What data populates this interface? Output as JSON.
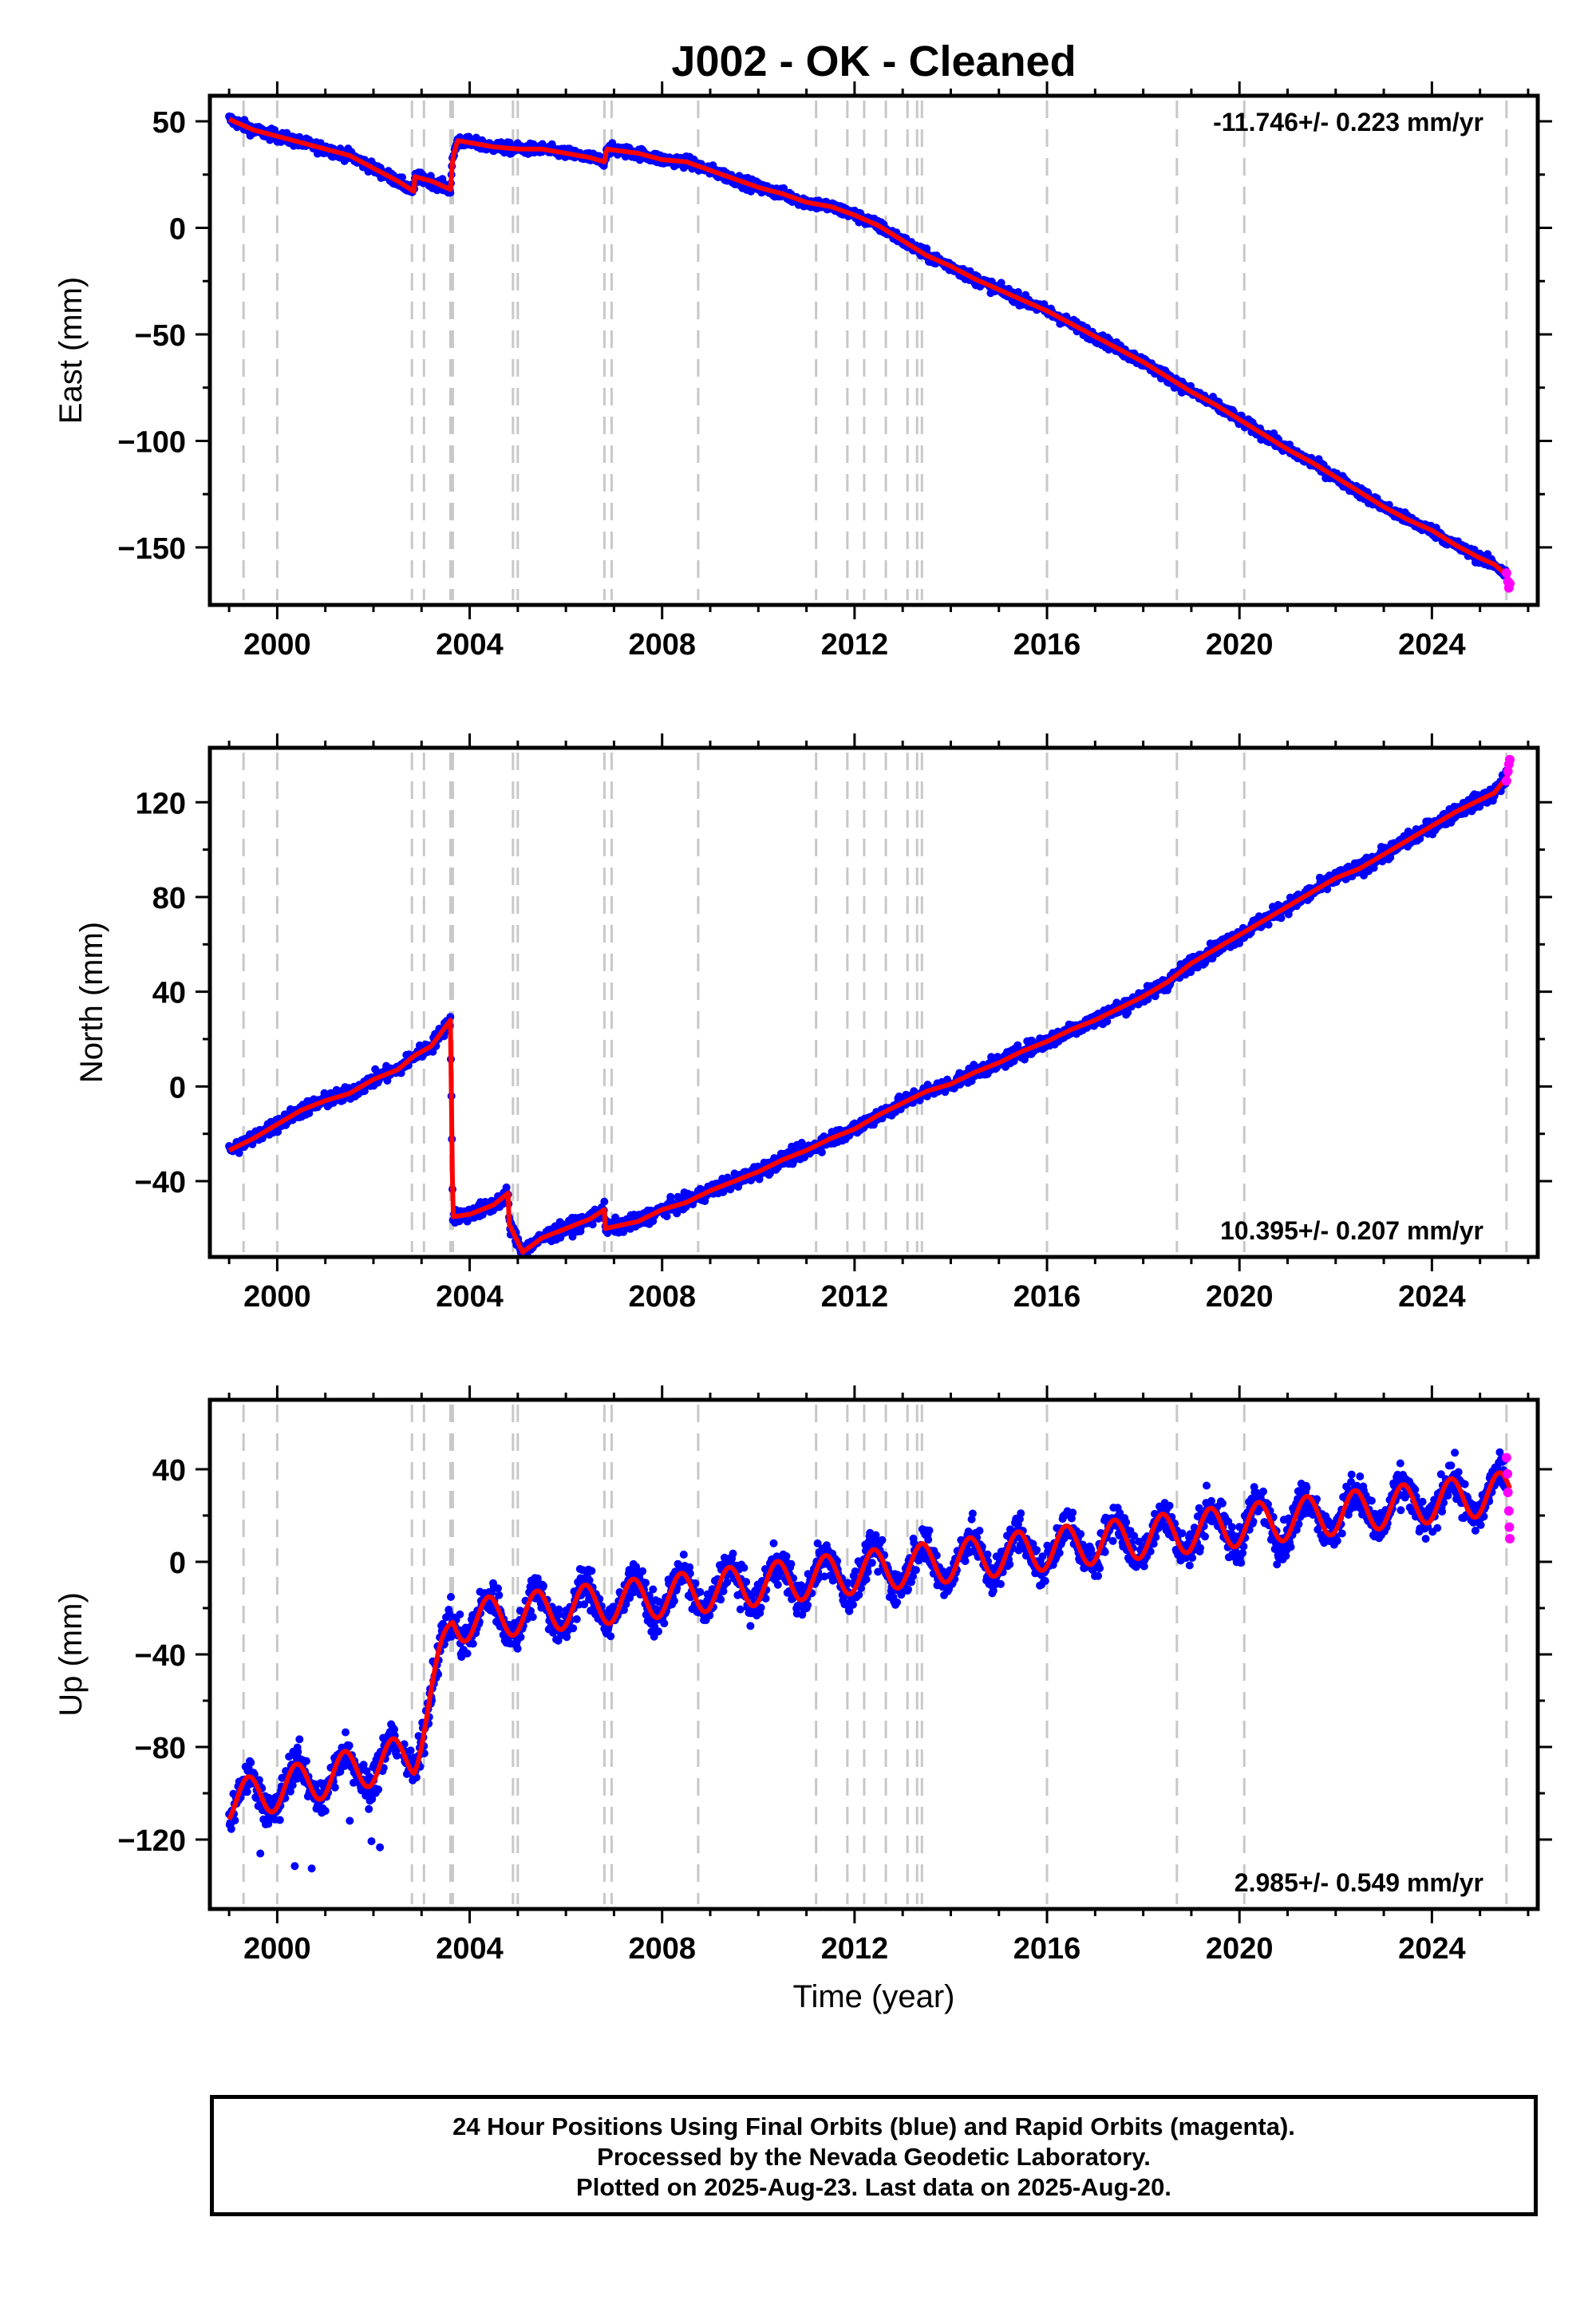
{
  "figure_title": "J002  - OK - Cleaned",
  "xlabel": "Time (year)",
  "colors": {
    "final_orbits": "#0000ff",
    "rapid_orbits": "#ff00ff",
    "model": "#ff0000",
    "event_lines": "#c8c8c8"
  },
  "chart_data": [
    {
      "type": "scatter",
      "component": "East",
      "ylabel": "East (mm)",
      "rate_label": "-11.746+/- 0.223 mm/yr",
      "rate_position": "top-right",
      "xlim": [
        1998.6,
        2026.2
      ],
      "ylim": [
        -177,
        62
      ],
      "xticks": [
        2000,
        2004,
        2008,
        2012,
        2016,
        2020,
        2024
      ],
      "yticks": [
        50,
        0,
        -50,
        -100,
        -150
      ],
      "ytick_labels": [
        "50",
        "0",
        "−50",
        "−100",
        "−150"
      ],
      "event_lines": [
        1999.3,
        2000.0,
        2002.8,
        2003.05,
        2003.6,
        2003.65,
        2004.9,
        2005.0,
        2006.8,
        2006.95,
        2008.75,
        2011.2,
        2011.85,
        2012.2,
        2012.65,
        2013.1,
        2013.3,
        2013.4,
        2016.0,
        2018.7,
        2020.1,
        2025.55
      ],
      "model_series": {
        "name": "model",
        "points": [
          [
            1999.0,
            51
          ],
          [
            1999.5,
            46
          ],
          [
            2000.0,
            43
          ],
          [
            2000.5,
            40
          ],
          [
            2001.0,
            37
          ],
          [
            2001.5,
            34
          ],
          [
            2002.0,
            28
          ],
          [
            2002.5,
            22
          ],
          [
            2002.85,
            17
          ],
          [
            2002.86,
            24
          ],
          [
            2003.2,
            22
          ],
          [
            2003.6,
            18
          ],
          [
            2003.65,
            33
          ],
          [
            2003.75,
            41
          ],
          [
            2004.0,
            40
          ],
          [
            2004.5,
            38
          ],
          [
            2005.0,
            37
          ],
          [
            2005.5,
            37
          ],
          [
            2006.0,
            35
          ],
          [
            2006.5,
            33
          ],
          [
            2006.8,
            31
          ],
          [
            2006.85,
            37
          ],
          [
            2007.5,
            35
          ],
          [
            2008.0,
            32
          ],
          [
            2008.5,
            31
          ],
          [
            2009.0,
            27
          ],
          [
            2009.5,
            23
          ],
          [
            2010.0,
            19
          ],
          [
            2010.5,
            16
          ],
          [
            2011.0,
            12
          ],
          [
            2011.5,
            10
          ],
          [
            2012.0,
            6
          ],
          [
            2012.5,
            1
          ],
          [
            2013.0,
            -6
          ],
          [
            2013.5,
            -13
          ],
          [
            2014.0,
            -18
          ],
          [
            2014.5,
            -24
          ],
          [
            2015.0,
            -29
          ],
          [
            2015.5,
            -34
          ],
          [
            2016.0,
            -39
          ],
          [
            2016.5,
            -45
          ],
          [
            2017.0,
            -51
          ],
          [
            2017.5,
            -57
          ],
          [
            2018.0,
            -63
          ],
          [
            2018.5,
            -70
          ],
          [
            2019.0,
            -77
          ],
          [
            2019.5,
            -83
          ],
          [
            2020.0,
            -90
          ],
          [
            2020.5,
            -97
          ],
          [
            2021.0,
            -104
          ],
          [
            2021.5,
            -110
          ],
          [
            2022.0,
            -117
          ],
          [
            2022.5,
            -124
          ],
          [
            2023.0,
            -131
          ],
          [
            2023.5,
            -137
          ],
          [
            2024.0,
            -142
          ],
          [
            2024.5,
            -149
          ],
          [
            2025.0,
            -155
          ],
          [
            2025.3,
            -158
          ],
          [
            2025.6,
            -164
          ]
        ]
      },
      "scatter_series": {
        "name": "Final Orbits",
        "scatter_width_mm": 2.5
      },
      "rapid_series": {
        "name": "Rapid Orbits",
        "points": [
          [
            2025.55,
            -162
          ],
          [
            2025.58,
            -166
          ],
          [
            2025.6,
            -169
          ],
          [
            2025.62,
            -167
          ]
        ]
      }
    },
    {
      "type": "scatter",
      "component": "North",
      "ylabel": "North (mm)",
      "rate_label": "10.395+/- 0.207 mm/yr",
      "rate_position": "bottom-right",
      "xlim": [
        1998.6,
        2026.2
      ],
      "ylim": [
        -72,
        143
      ],
      "xticks": [
        2000,
        2004,
        2008,
        2012,
        2016,
        2020,
        2024
      ],
      "yticks": [
        120,
        80,
        40,
        0,
        -40
      ],
      "ytick_labels": [
        "120",
        "80",
        "40",
        "0",
        "−40"
      ],
      "event_lines": [
        1999.3,
        2000.0,
        2002.8,
        2003.05,
        2003.6,
        2003.65,
        2004.9,
        2005.0,
        2006.8,
        2006.95,
        2008.75,
        2011.2,
        2011.85,
        2012.2,
        2012.65,
        2013.1,
        2013.3,
        2013.4,
        2016.0,
        2018.7,
        2020.1,
        2025.55
      ],
      "model_series": {
        "name": "model",
        "points": [
          [
            1999.0,
            -27
          ],
          [
            1999.5,
            -22
          ],
          [
            2000.0,
            -16
          ],
          [
            2000.5,
            -10
          ],
          [
            2001.0,
            -6
          ],
          [
            2001.5,
            -3
          ],
          [
            2002.0,
            3
          ],
          [
            2002.5,
            7
          ],
          [
            2002.85,
            13
          ],
          [
            2003.2,
            17
          ],
          [
            2003.6,
            28
          ],
          [
            2003.65,
            -55
          ],
          [
            2004.0,
            -54
          ],
          [
            2004.5,
            -50
          ],
          [
            2004.8,
            -45
          ],
          [
            2004.82,
            -58
          ],
          [
            2005.1,
            -70
          ],
          [
            2005.5,
            -64
          ],
          [
            2006.0,
            -60
          ],
          [
            2006.5,
            -56
          ],
          [
            2006.8,
            -52
          ],
          [
            2006.82,
            -60
          ],
          [
            2007.5,
            -57
          ],
          [
            2008.0,
            -52
          ],
          [
            2008.5,
            -49
          ],
          [
            2009.0,
            -44
          ],
          [
            2009.5,
            -40
          ],
          [
            2010.0,
            -36
          ],
          [
            2010.5,
            -31
          ],
          [
            2011.0,
            -27
          ],
          [
            2011.5,
            -22
          ],
          [
            2012.0,
            -18
          ],
          [
            2012.5,
            -12
          ],
          [
            2013.0,
            -7
          ],
          [
            2013.5,
            -2
          ],
          [
            2014.0,
            1
          ],
          [
            2014.5,
            6
          ],
          [
            2015.0,
            10
          ],
          [
            2015.5,
            15
          ],
          [
            2016.0,
            19
          ],
          [
            2016.5,
            24
          ],
          [
            2017.0,
            28
          ],
          [
            2017.5,
            33
          ],
          [
            2018.0,
            38
          ],
          [
            2018.5,
            44
          ],
          [
            2019.0,
            52
          ],
          [
            2019.5,
            58
          ],
          [
            2020.0,
            64
          ],
          [
            2020.5,
            70
          ],
          [
            2021.0,
            76
          ],
          [
            2021.5,
            82
          ],
          [
            2022.0,
            88
          ],
          [
            2022.5,
            92
          ],
          [
            2023.0,
            98
          ],
          [
            2023.5,
            104
          ],
          [
            2024.0,
            110
          ],
          [
            2024.5,
            116
          ],
          [
            2025.0,
            121
          ],
          [
            2025.3,
            124
          ],
          [
            2025.6,
            132
          ]
        ]
      },
      "scatter_series": {
        "name": "Final Orbits",
        "scatter_width_mm": 3
      },
      "rapid_series": {
        "name": "Rapid Orbits",
        "points": [
          [
            2025.55,
            129
          ],
          [
            2025.58,
            133
          ],
          [
            2025.6,
            136
          ],
          [
            2025.62,
            138
          ]
        ]
      }
    },
    {
      "type": "scatter",
      "component": "Up",
      "ylabel": "Up (mm)",
      "rate_label": "2.985+/- 0.549 mm/yr",
      "rate_position": "bottom-right",
      "xlim": [
        1998.6,
        2026.2
      ],
      "ylim": [
        -150,
        70
      ],
      "xticks": [
        2000,
        2004,
        2008,
        2012,
        2016,
        2020,
        2024
      ],
      "yticks": [
        40,
        0,
        -40,
        -80,
        -120
      ],
      "ytick_labels": [
        "40",
        "0",
        "−40",
        "−80",
        "−120"
      ],
      "event_lines": [
        1999.3,
        2000.0,
        2002.8,
        2003.05,
        2003.6,
        2003.65,
        2004.9,
        2005.0,
        2006.8,
        2006.95,
        2008.75,
        2011.2,
        2011.85,
        2012.2,
        2012.65,
        2013.1,
        2013.3,
        2013.4,
        2016.0,
        2018.7,
        2020.1,
        2025.55
      ],
      "model_series": {
        "name": "model",
        "trend": {
          "breaks": [
            [
              1999.0,
              -104
            ],
            [
              2002.85,
              -83
            ],
            [
              2003.65,
              -26
            ],
            [
              2025.6,
              30
            ]
          ],
          "seasonal_amplitude_mm": 9,
          "seasonal_peak_phase": 0.4
        }
      },
      "scatter_series": {
        "name": "Final Orbits",
        "scatter_width_mm": 8
      },
      "rapid_series": {
        "name": "Rapid Orbits",
        "points": [
          [
            2025.55,
            45
          ],
          [
            2025.57,
            38
          ],
          [
            2025.58,
            30
          ],
          [
            2025.6,
            22
          ],
          [
            2025.61,
            15
          ],
          [
            2025.62,
            10
          ]
        ]
      }
    }
  ],
  "caption": {
    "line1": "24 Hour Positions Using Final Orbits (blue) and Rapid Orbits (magenta).",
    "line2": "Processed by the Nevada Geodetic Laboratory.",
    "line3": "Plotted on 2025-Aug-23. Last data on 2025-Aug-20."
  }
}
